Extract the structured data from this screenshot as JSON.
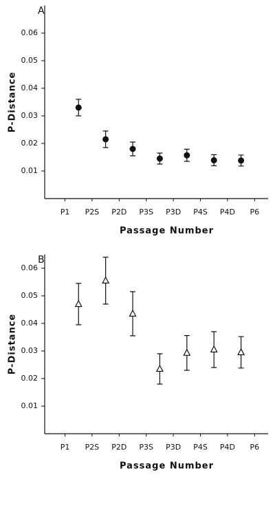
{
  "chart_data": [
    {
      "type": "scatter",
      "panel": "A",
      "xlabel": "Passage Number",
      "ylabel": "P-Distance",
      "marker": "circle",
      "color": "#111111",
      "x": [
        1.5,
        2.5,
        3.5,
        4.5,
        5.5,
        6.5,
        7.5
      ],
      "values": [
        0.033,
        0.0215,
        0.018,
        0.0145,
        0.0157,
        0.0139,
        0.0138
      ],
      "errors": [
        0.003,
        0.003,
        0.0025,
        0.002,
        0.0022,
        0.002,
        0.002
      ],
      "xlim": [
        0.25,
        8.5
      ],
      "xticks": [
        {
          "value": 1,
          "label": "P1"
        },
        {
          "value": 2,
          "label": "P2S"
        },
        {
          "value": 3,
          "label": "P2D"
        },
        {
          "value": 4,
          "label": "P3S"
        },
        {
          "value": 5,
          "label": "P3D"
        },
        {
          "value": 6,
          "label": "P4S"
        },
        {
          "value": 7,
          "label": "P4D"
        },
        {
          "value": 8,
          "label": "P6"
        }
      ],
      "ylim": [
        0,
        0.07
      ],
      "yticks": [
        0.01,
        0.02,
        0.03,
        0.04,
        0.05,
        0.06
      ]
    },
    {
      "type": "scatter",
      "panel": "B",
      "xlabel": "Passage Number",
      "ylabel": "P-Distance",
      "marker": "triangle",
      "color": "#111111",
      "x": [
        1.5,
        2.5,
        3.5,
        4.5,
        5.5,
        6.5,
        7.5
      ],
      "values": [
        0.047,
        0.0555,
        0.0435,
        0.0235,
        0.0293,
        0.0305,
        0.0295
      ],
      "errors": [
        0.0075,
        0.0085,
        0.008,
        0.0055,
        0.0063,
        0.0065,
        0.0057
      ],
      "xlim": [
        0.25,
        8.5
      ],
      "xticks": [
        {
          "value": 1,
          "label": "P1"
        },
        {
          "value": 2,
          "label": "P2S"
        },
        {
          "value": 3,
          "label": "P2D"
        },
        {
          "value": 4,
          "label": "P3S"
        },
        {
          "value": 5,
          "label": "P3D"
        },
        {
          "value": 6,
          "label": "P4S"
        },
        {
          "value": 7,
          "label": "P4D"
        },
        {
          "value": 8,
          "label": "P6"
        }
      ],
      "ylim": [
        0,
        0.065
      ],
      "yticks": [
        0.01,
        0.02,
        0.03,
        0.04,
        0.05,
        0.06
      ]
    }
  ]
}
